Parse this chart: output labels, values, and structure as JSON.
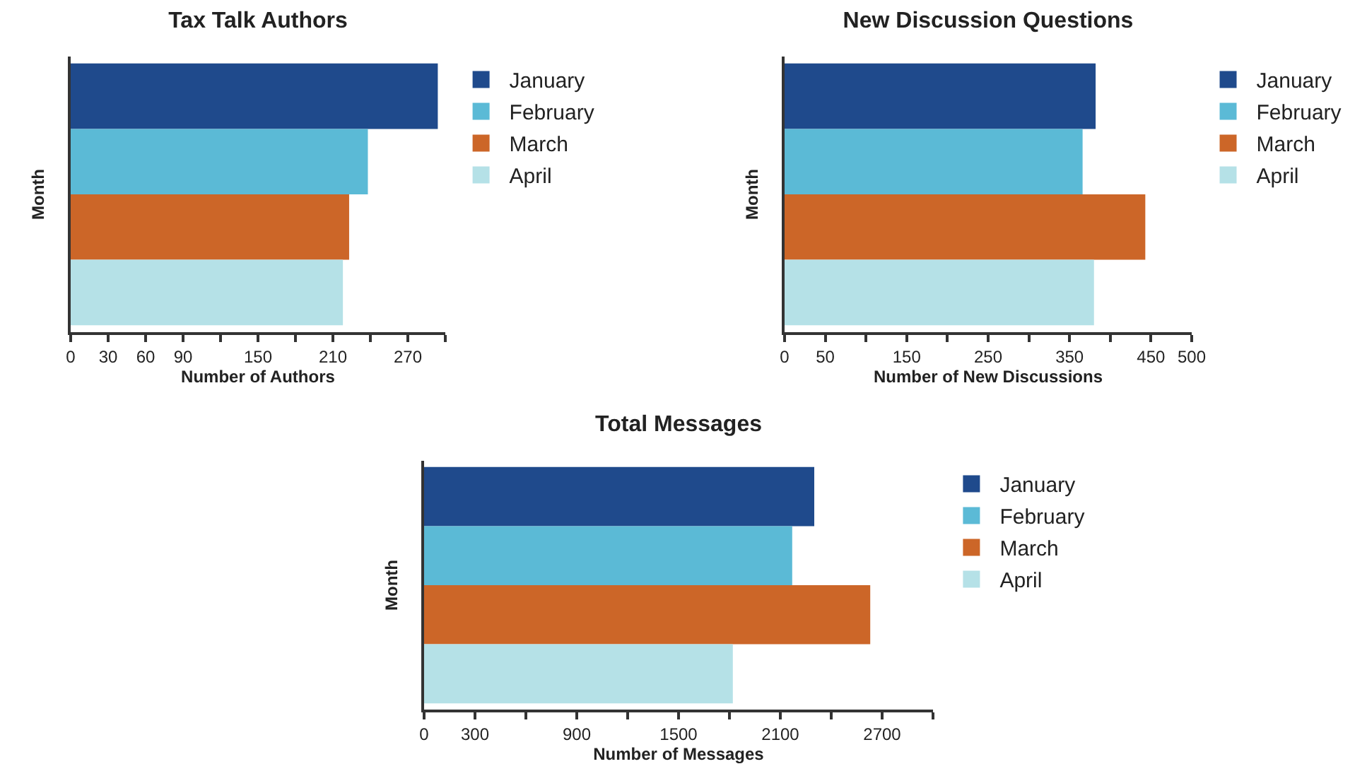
{
  "chart_data": [
    {
      "type": "bar",
      "title": "Tax Talk Authors",
      "xlabel": "Number of Authors",
      "ylabel": "Month",
      "orientation": "horizontal",
      "categories": [
        null
      ],
      "grid": false,
      "legend": "top right",
      "tick_labels": "x",
      "xlim": [
        0,
        300
      ],
      "xticks": [
        0,
        30,
        60,
        90,
        {
          "value": 120,
          "label": null
        },
        150,
        {
          "value": 180,
          "label": null
        },
        210,
        {
          "value": 240,
          "label": null
        },
        270,
        {
          "value": 300,
          "label": null
        }
      ],
      "series": [
        {
          "name": "January",
          "color": "#1f4a8c",
          "values": [
            294
          ]
        },
        {
          "name": "February",
          "color": "#5bbad6",
          "values": [
            238
          ]
        },
        {
          "name": "March",
          "color": "#cc6628",
          "values": [
            223
          ]
        },
        {
          "name": "April",
          "color": "#b5e1e7",
          "values": [
            218
          ]
        }
      ]
    },
    {
      "type": "bar",
      "title": "New Discussion Questions",
      "xlabel": "Number of New Discussions",
      "ylabel": "Month",
      "orientation": "horizontal",
      "categories": [
        null
      ],
      "grid": false,
      "legend": "top right",
      "tick_labels": "x",
      "xlim": [
        0,
        500
      ],
      "xticks": [
        0,
        50,
        {
          "value": 100,
          "label": null
        },
        150,
        {
          "value": 200,
          "label": null
        },
        250,
        {
          "value": 300,
          "label": null
        },
        350,
        {
          "value": 400,
          "label": null
        },
        450,
        500
      ],
      "series": [
        {
          "name": "January",
          "color": "#1f4a8c",
          "values": [
            382
          ]
        },
        {
          "name": "February",
          "color": "#5bbad6",
          "values": [
            366
          ]
        },
        {
          "name": "March",
          "color": "#cc6628",
          "values": [
            443
          ]
        },
        {
          "name": "April",
          "color": "#b5e1e7",
          "values": [
            380
          ]
        }
      ]
    },
    {
      "type": "bar",
      "title": "Total Messages",
      "xlabel": "Number of Messages",
      "ylabel": "Month",
      "orientation": "horizontal",
      "categories": [
        null
      ],
      "grid": false,
      "legend": "top right",
      "tick_labels": "x",
      "xlim": [
        0,
        3000
      ],
      "xticks": [
        0,
        300,
        {
          "value": 600,
          "label": null
        },
        900,
        {
          "value": 1200,
          "label": null
        },
        1500,
        {
          "value": 1800,
          "label": null
        },
        2100,
        {
          "value": 2400,
          "label": null
        },
        2700,
        {
          "value": 3000,
          "label": null
        }
      ],
      "series": [
        {
          "name": "January",
          "color": "#1f4a8c",
          "values": [
            2300
          ]
        },
        {
          "name": "February",
          "color": "#5bbad6",
          "values": [
            2170
          ]
        },
        {
          "name": "March",
          "color": "#cc6628",
          "values": [
            2630
          ]
        },
        {
          "name": "April",
          "color": "#b5e1e7",
          "values": [
            1820
          ]
        }
      ]
    }
  ]
}
